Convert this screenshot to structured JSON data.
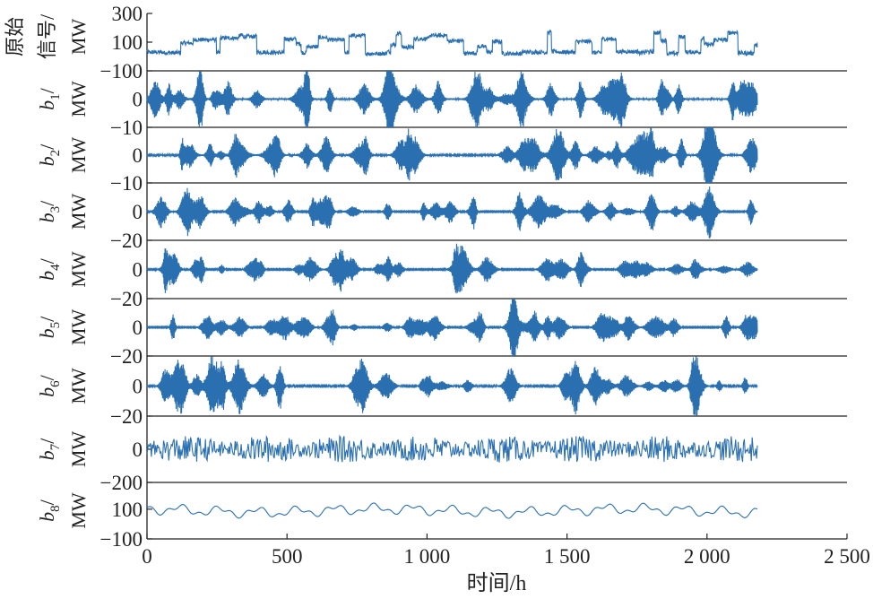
{
  "chart_data": {
    "type": "line",
    "title": "",
    "xlabel": "时间/h",
    "xlim": [
      0,
      2500
    ],
    "x_ticks": [
      "0",
      "500",
      "1 000",
      "1 500",
      "2 000",
      "2 500"
    ],
    "x_tick_values": [
      0,
      500,
      1000,
      1500,
      2000,
      2500
    ],
    "x_data_end": 2180,
    "grid": false,
    "color": "#2a6fb0",
    "panels": [
      {
        "name": "原始信号",
        "ylabel_main": "原始信号/",
        "ylabel_var": "",
        "ylabel_sub": "",
        "ylabel_unit": "MW",
        "ylim": [
          -100,
          300
        ],
        "ticks": [
          {
            "v": 300,
            "t": "300"
          },
          {
            "v": 100,
            "t": "100"
          },
          {
            "v": -100,
            "t": "−100"
          }
        ],
        "kind": "blocks",
        "approx_range": [
          20,
          200
        ]
      },
      {
        "name": "b1",
        "ylabel_var": "b",
        "ylabel_sub": "1",
        "ylabel_unit": "MW",
        "ylim": [
          -10,
          10
        ],
        "ticks": [
          {
            "v": 0,
            "t": "0"
          },
          {
            "v": -10,
            "t": "−10"
          }
        ],
        "kind": "bursts",
        "approx_amplitude": 8
      },
      {
        "name": "b2",
        "ylabel_var": "b",
        "ylabel_sub": "2",
        "ylabel_unit": "MW",
        "ylim": [
          -10,
          10
        ],
        "ticks": [
          {
            "v": 0,
            "t": "0"
          },
          {
            "v": -10,
            "t": "−10"
          }
        ],
        "kind": "bursts",
        "approx_amplitude": 7
      },
      {
        "name": "b3",
        "ylabel_var": "b",
        "ylabel_sub": "3",
        "ylabel_unit": "MW",
        "ylim": [
          -20,
          20
        ],
        "ticks": [
          {
            "v": 0,
            "t": "0"
          },
          {
            "v": -20,
            "t": "−20"
          }
        ],
        "kind": "bursts",
        "approx_amplitude": 10
      },
      {
        "name": "b4",
        "ylabel_var": "b",
        "ylabel_sub": "4",
        "ylabel_unit": "MW",
        "ylim": [
          -20,
          20
        ],
        "ticks": [
          {
            "v": 0,
            "t": "0"
          },
          {
            "v": -20,
            "t": "−20"
          }
        ],
        "kind": "bursts",
        "approx_amplitude": 10
      },
      {
        "name": "b5",
        "ylabel_var": "b",
        "ylabel_sub": "5",
        "ylabel_unit": "MW",
        "ylim": [
          -20,
          20
        ],
        "ticks": [
          {
            "v": 0,
            "t": "0"
          },
          {
            "v": -20,
            "t": "−20"
          }
        ],
        "kind": "bursts",
        "approx_amplitude": 10
      },
      {
        "name": "b6",
        "ylabel_var": "b",
        "ylabel_sub": "6",
        "ylabel_unit": "MW",
        "ylim": [
          -20,
          20
        ],
        "ticks": [
          {
            "v": 0,
            "t": "0"
          },
          {
            "v": -20,
            "t": "−20"
          }
        ],
        "kind": "bursts",
        "approx_amplitude": 12
      },
      {
        "name": "b7",
        "ylabel_var": "b",
        "ylabel_sub": "7",
        "ylabel_unit": "MW",
        "ylim": [
          -200,
          200
        ],
        "ticks": [
          {
            "v": 0,
            "t": "0"
          },
          {
            "v": -200,
            "t": "−200"
          }
        ],
        "kind": "noise",
        "approx_amplitude": 80
      },
      {
        "name": "b8",
        "ylabel_var": "b",
        "ylabel_sub": "8",
        "ylabel_unit": "MW",
        "ylim": [
          -100,
          280
        ],
        "ticks": [
          {
            "v": 100,
            "t": "100"
          },
          {
            "v": -100,
            "t": "−100"
          }
        ],
        "kind": "smooth",
        "approx_range": [
          50,
          140
        ]
      }
    ]
  }
}
